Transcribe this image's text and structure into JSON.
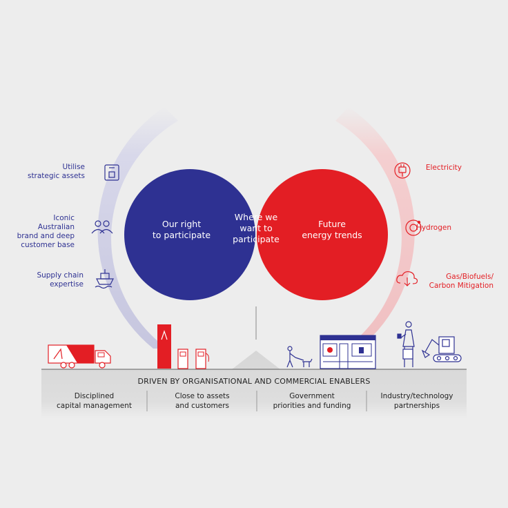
{
  "left_capabilities": [
    {
      "line1": "Utilise",
      "line2": "strategic assets",
      "icon": "storage-tank-icon"
    },
    {
      "line1": "Iconic",
      "line2": "Australian",
      "line3": "brand and deep",
      "line4": "customer base",
      "icon": "people-icon"
    },
    {
      "line1": "Supply chain",
      "line2": "expertise",
      "icon": "ship-icon"
    }
  ],
  "right_trends": [
    {
      "line1": "Electricity",
      "icon": "plug-icon"
    },
    {
      "line1": "Hydrogen",
      "icon": "hydrogen-ring-icon"
    },
    {
      "line1": "Gas/Biofuels/",
      "line2": "Carbon Mitigation",
      "icon": "cloud-down-icon"
    }
  ],
  "venn": {
    "left": {
      "line1": "Our right",
      "line2": "to participate"
    },
    "overlap": {
      "line1": "Where we",
      "line2": "want to",
      "line3": "participate"
    },
    "right": {
      "line1": "Future",
      "line2": "energy trends"
    }
  },
  "base": {
    "title": "DRIVEN BY ORGANISATIONAL AND COMMERCIAL ENABLERS",
    "enablers": [
      {
        "line1": "Disciplined",
        "line2": "capital management"
      },
      {
        "line1": "Close to assets",
        "line2": "and customers"
      },
      {
        "line1": "Government",
        "line2": "priorities and funding"
      },
      {
        "line1": "Industry/technology",
        "line2": "partnerships"
      }
    ]
  },
  "colors": {
    "navy": "#2e3192",
    "red": "#e31e24",
    "overlap": "#1d2a5e",
    "left_arc": "#c8c8e0",
    "right_arc": "#f2c2c4",
    "base": "#d9d9d9"
  }
}
